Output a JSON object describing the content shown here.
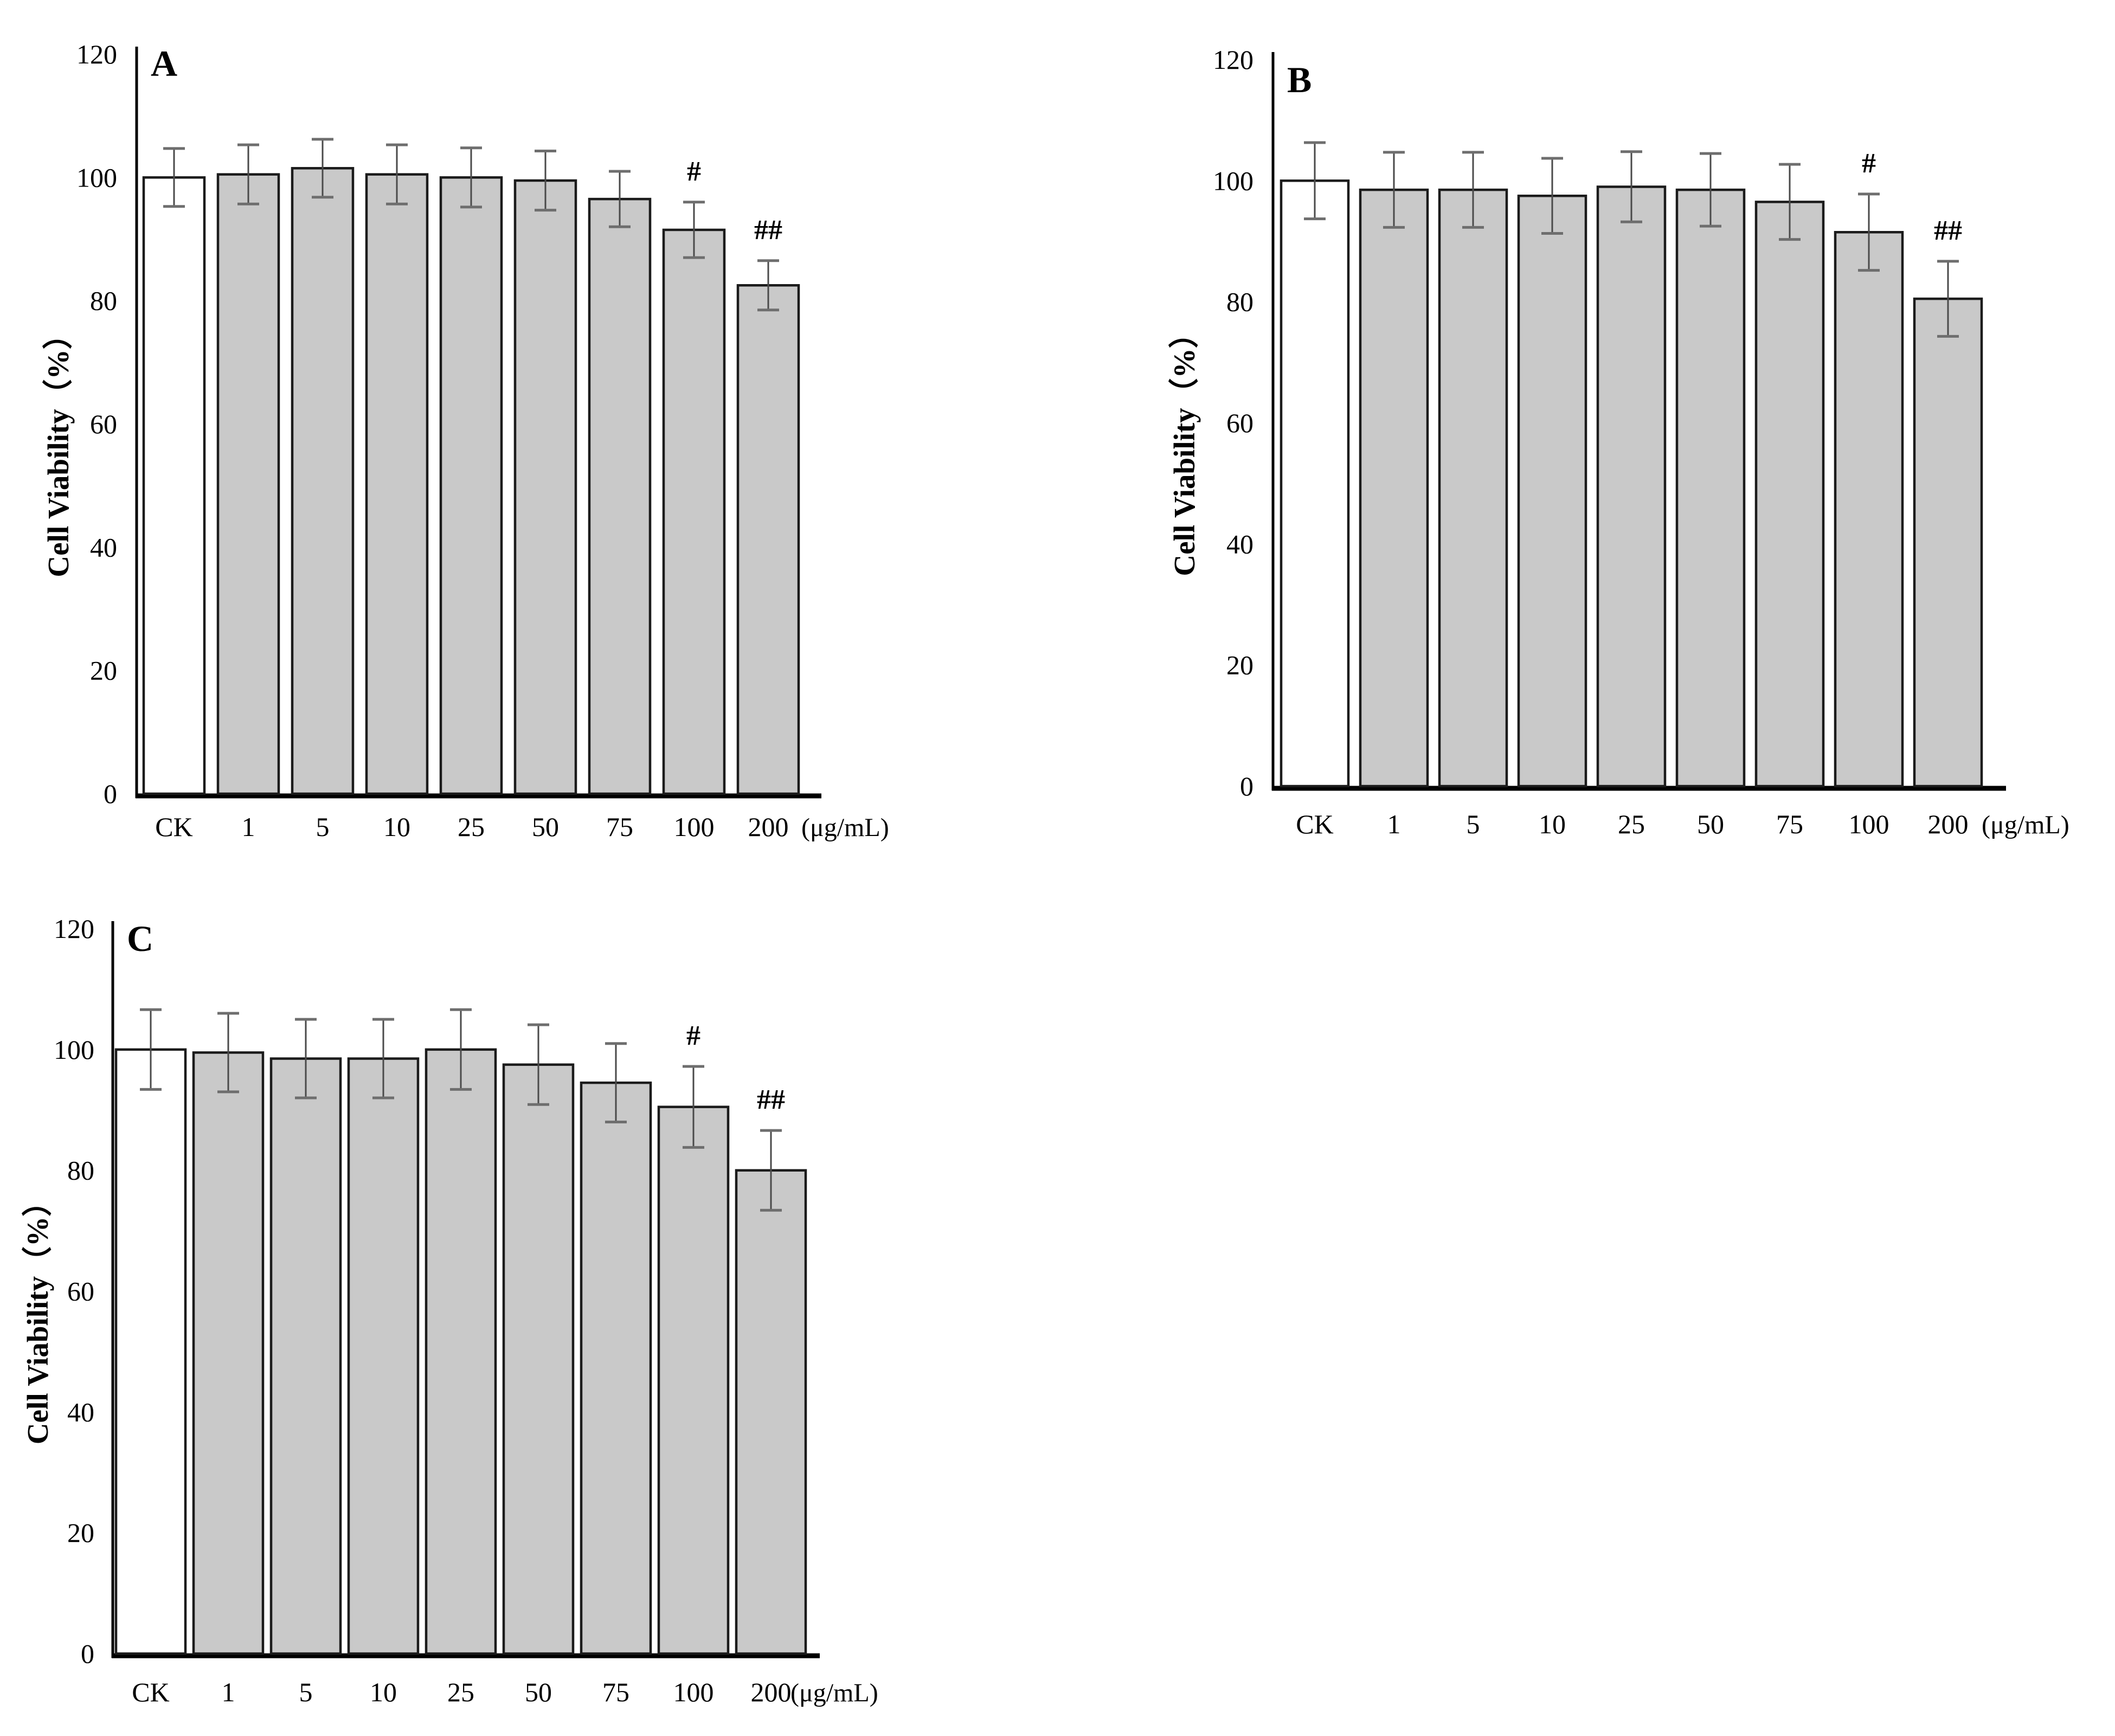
{
  "figure": {
    "background": "#ffffff",
    "ylabel": "Cell Viability（%）",
    "x_unit_label": "(μg/mL)",
    "categories": [
      "CK",
      "1",
      "5",
      "10",
      "25",
      "50",
      "75",
      "100",
      "200"
    ],
    "yticks": [
      0,
      20,
      40,
      60,
      80,
      100,
      120
    ],
    "panels": [
      "A",
      "B",
      "C"
    ],
    "colors": {
      "control_bar_fill": "#ffffff",
      "treatment_bar_fill": "#c9c9c9",
      "bar_stroke": "#1b1b1b",
      "error_line": "#4a4a4a",
      "error_cap": "#6e6e6e",
      "axis": "#000000",
      "text": "#000000"
    }
  },
  "chart_data": [
    {
      "type": "bar",
      "panel": "A",
      "title": "",
      "xlabel": "",
      "x_unit": "(μg/mL)",
      "ylabel": "Cell Viability（%）",
      "ylim": [
        0,
        120
      ],
      "yticks": [
        0,
        20,
        40,
        60,
        80,
        100,
        120
      ],
      "grid": false,
      "legend": false,
      "categories": [
        "CK",
        "1",
        "5",
        "10",
        "25",
        "50",
        "75",
        "100",
        "200"
      ],
      "values": [
        100,
        100.5,
        101.5,
        100.5,
        100,
        99.5,
        96.5,
        91.5,
        82.5
      ],
      "errors": [
        4.7,
        4.8,
        4.7,
        4.8,
        4.8,
        4.8,
        4.5,
        4.5,
        4.0
      ],
      "annotations": [
        {
          "bar_index": 7,
          "text": "#"
        },
        {
          "bar_index": 8,
          "text": "##"
        }
      ]
    },
    {
      "type": "bar",
      "panel": "B",
      "title": "",
      "xlabel": "",
      "x_unit": "(μg/mL)",
      "ylabel": "Cell Viability（%）",
      "ylim": [
        0,
        120
      ],
      "yticks": [
        0,
        20,
        40,
        60,
        80,
        100,
        120
      ],
      "grid": false,
      "legend": false,
      "categories": [
        "CK",
        "1",
        "5",
        "10",
        "25",
        "50",
        "75",
        "100",
        "200"
      ],
      "values": [
        100,
        98.5,
        98.5,
        97.5,
        99,
        98.5,
        96.5,
        91.5,
        80.5
      ],
      "errors": [
        6.3,
        6.2,
        6.2,
        6.2,
        5.8,
        6.0,
        6.2,
        6.3,
        6.2
      ],
      "annotations": [
        {
          "bar_index": 7,
          "text": "#"
        },
        {
          "bar_index": 8,
          "text": "##"
        }
      ]
    },
    {
      "type": "bar",
      "panel": "C",
      "title": "",
      "xlabel": "",
      "x_unit": "(μg/mL)",
      "ylabel": "Cell Viability（%）",
      "ylim": [
        0,
        120
      ],
      "yticks": [
        0,
        20,
        40,
        60,
        80,
        100,
        120
      ],
      "grid": false,
      "legend": false,
      "categories": [
        "CK",
        "1",
        "5",
        "10",
        "25",
        "50",
        "75",
        "100",
        "200"
      ],
      "values": [
        100,
        99.5,
        98.5,
        98.5,
        100,
        97.5,
        94.5,
        90.5,
        80
      ],
      "errors": [
        6.6,
        6.5,
        6.5,
        6.5,
        6.6,
        6.6,
        6.5,
        6.7,
        6.6
      ],
      "annotations": [
        {
          "bar_index": 7,
          "text": "#"
        },
        {
          "bar_index": 8,
          "text": "##"
        }
      ]
    }
  ]
}
